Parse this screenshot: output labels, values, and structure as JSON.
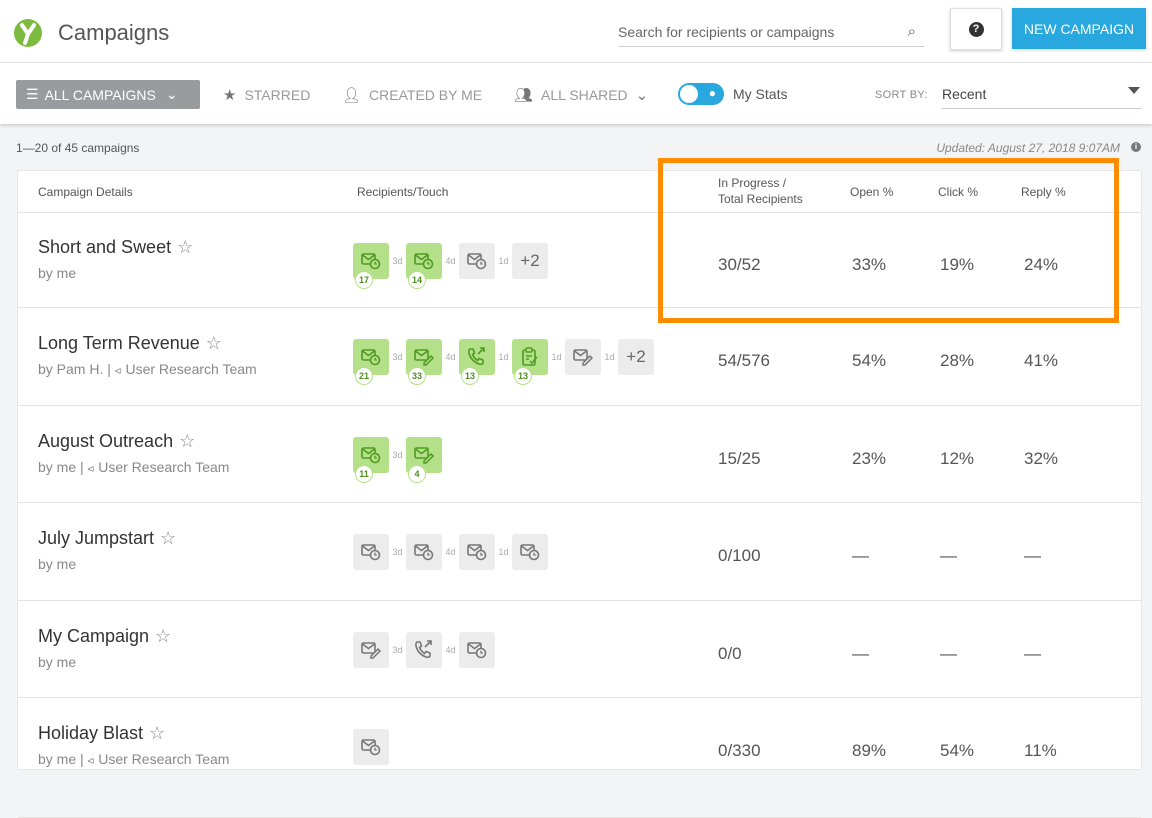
{
  "header": {
    "title": "Campaigns",
    "search_placeholder": "Search for recipients or campaigns",
    "help_label": "?",
    "new_campaign": "NEW CAMPAIGN"
  },
  "toolbar": {
    "all_campaigns": "ALL CAMPAIGNS",
    "starred": "STARRED",
    "created_by_me": "CREATED BY ME",
    "all_shared": "ALL SHARED",
    "my_stats": "My Stats",
    "my_stats_on": true,
    "sort_by_label": "SORT BY:",
    "sort_by_value": "Recent"
  },
  "summary": {
    "count": "1—20 of 45 campaigns",
    "updated": "Updated: August 27, 2018 9:07AM"
  },
  "table": {
    "headers": {
      "details": "Campaign Details",
      "touch": "Recipients/Touch",
      "progress_1": "In Progress /",
      "progress_2": "Total Recipients",
      "open": "Open %",
      "click": "Click %",
      "reply": "Reply %"
    },
    "rows": [
      {
        "name": "Short and Sweet",
        "by": "by me",
        "team": "",
        "progress": "30/52",
        "open": "33%",
        "click": "19%",
        "reply": "24%",
        "touches": [
          {
            "icon": "email-clock",
            "active": true,
            "count": "17",
            "gap": "3d"
          },
          {
            "icon": "email-clock",
            "active": true,
            "count": "14",
            "gap": "4d"
          },
          {
            "icon": "email-clock",
            "active": false,
            "gap": "1d"
          }
        ],
        "more": "+2"
      },
      {
        "name": "Long Term Revenue",
        "by": "by Pam H.",
        "team": "User Research Team",
        "progress": "54/576",
        "open": "54%",
        "click": "28%",
        "reply": "41%",
        "touches": [
          {
            "icon": "email-clock",
            "active": true,
            "count": "21",
            "gap": "3d"
          },
          {
            "icon": "email-pen",
            "active": true,
            "count": "33",
            "gap": "4d"
          },
          {
            "icon": "phone",
            "active": true,
            "count": "13",
            "gap": "1d"
          },
          {
            "icon": "task",
            "active": true,
            "count": "13",
            "gap": "1d"
          },
          {
            "icon": "email-pen",
            "active": false,
            "gap": "1d"
          }
        ],
        "more": "+2"
      },
      {
        "name": "August Outreach",
        "by": "by me",
        "team": "User Research Team",
        "progress": "15/25",
        "open": "23%",
        "click": "12%",
        "reply": "32%",
        "touches": [
          {
            "icon": "email-clock",
            "active": true,
            "count": "11",
            "gap": "3d"
          },
          {
            "icon": "email-pen",
            "active": true,
            "count": "4"
          }
        ],
        "more": ""
      },
      {
        "name": "July Jumpstart",
        "by": "by me",
        "team": "",
        "progress": "0/100",
        "open": "—",
        "click": "—",
        "reply": "—",
        "touches": [
          {
            "icon": "email-clock",
            "active": false,
            "gap": "3d"
          },
          {
            "icon": "email-clock",
            "active": false,
            "gap": "4d"
          },
          {
            "icon": "email-clock",
            "active": false,
            "gap": "1d"
          },
          {
            "icon": "email-clock",
            "active": false
          }
        ],
        "more": ""
      },
      {
        "name": "My Campaign",
        "by": "by me",
        "team": "",
        "progress": "0/0",
        "open": "—",
        "click": "—",
        "reply": "—",
        "touches": [
          {
            "icon": "email-pen",
            "active": false,
            "gap": "3d"
          },
          {
            "icon": "phone",
            "active": false,
            "gap": "4d"
          },
          {
            "icon": "email-clock",
            "active": false
          }
        ],
        "more": ""
      },
      {
        "name": "Holiday Blast",
        "by": "by me",
        "team": "User Research Team",
        "progress": "0/330",
        "open": "89%",
        "click": "54%",
        "reply": "11%",
        "touches": [
          {
            "icon": "email-clock",
            "active": false
          }
        ],
        "more": ""
      }
    ]
  },
  "colors": {
    "accent": "#29a8e0",
    "brand": "#7dbb3f",
    "active_touch": "#b5e08a",
    "highlight": "#ff8c00"
  }
}
